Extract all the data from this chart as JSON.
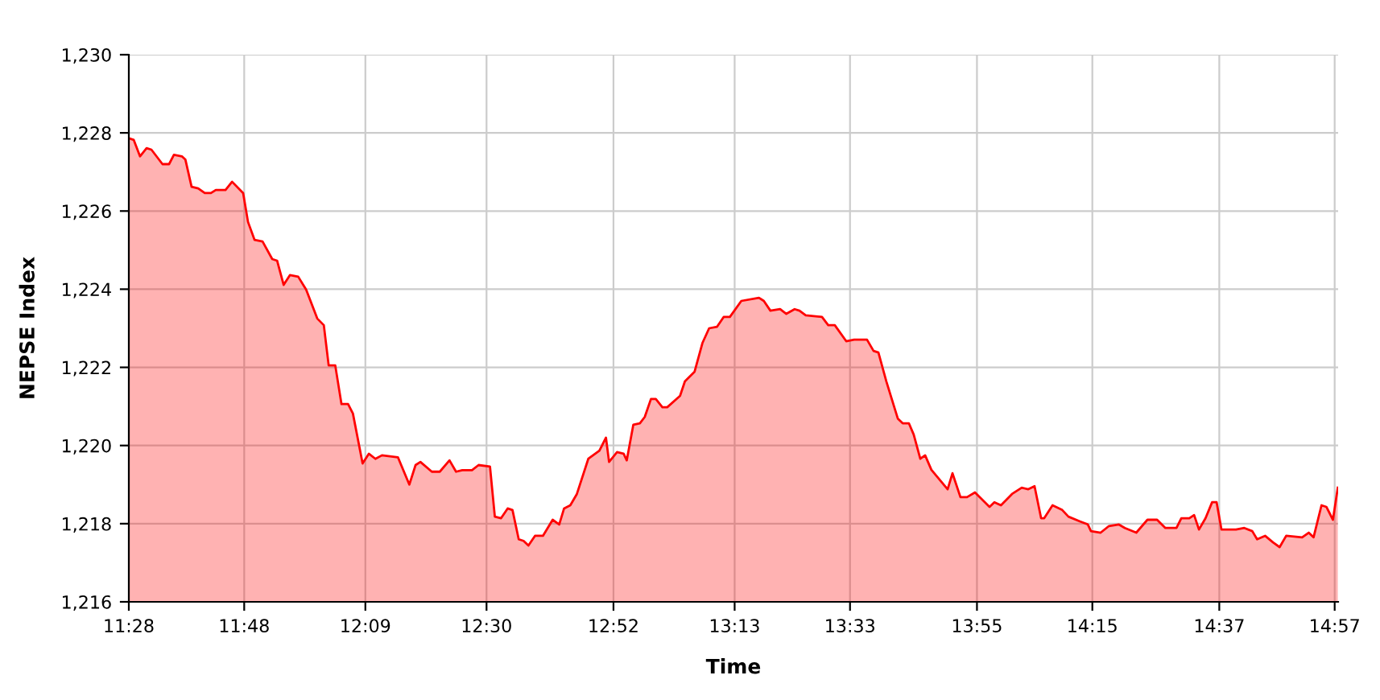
{
  "chart_data": {
    "type": "area",
    "xlabel": "Time",
    "ylabel": "NEPSE Index",
    "xlim": [
      11.4667,
      14.96
    ],
    "ylim": [
      1216,
      1230
    ],
    "xticks": [
      {
        "value": 11.4667,
        "label": "11:28"
      },
      {
        "value": 11.8,
        "label": "11:48"
      },
      {
        "value": 12.15,
        "label": "12:09"
      },
      {
        "value": 12.5,
        "label": "12:30"
      },
      {
        "value": 12.8667,
        "label": "12:52"
      },
      {
        "value": 13.2167,
        "label": "13:13"
      },
      {
        "value": 13.55,
        "label": "13:33"
      },
      {
        "value": 13.9167,
        "label": "13:55"
      },
      {
        "value": 14.25,
        "label": "14:15"
      },
      {
        "value": 14.6167,
        "label": "14:37"
      },
      {
        "value": 14.95,
        "label": "14:57"
      }
    ],
    "yticks": [
      {
        "value": 1216,
        "label": "1,216"
      },
      {
        "value": 1218,
        "label": "1,218"
      },
      {
        "value": 1220,
        "label": "1,220"
      },
      {
        "value": 1222,
        "label": "1,222"
      },
      {
        "value": 1224,
        "label": "1,224"
      },
      {
        "value": 1226,
        "label": "1,226"
      },
      {
        "value": 1228,
        "label": "1,228"
      },
      {
        "value": 1230,
        "label": "1,230"
      }
    ],
    "grid": true,
    "legend": false,
    "series": [
      {
        "color": "#ff0000",
        "x": [
          11.467,
          11.481,
          11.499,
          11.518,
          11.532,
          11.564,
          11.583,
          11.597,
          11.62,
          11.63,
          11.648,
          11.667,
          11.686,
          11.704,
          11.718,
          11.746,
          11.765,
          11.797,
          11.811,
          11.83,
          11.853,
          11.881,
          11.895,
          11.914,
          11.932,
          11.956,
          11.979,
          12.011,
          12.03,
          12.044,
          12.063,
          12.081,
          12.1,
          12.114,
          12.142,
          12.16,
          12.179,
          12.198,
          12.244,
          12.277,
          12.295,
          12.309,
          12.342,
          12.365,
          12.393,
          12.412,
          12.43,
          12.458,
          12.477,
          12.51,
          12.524,
          12.542,
          12.561,
          12.575,
          12.593,
          12.607,
          12.621,
          12.64,
          12.645,
          12.663,
          12.691,
          12.71,
          12.724,
          12.742,
          12.761,
          12.794,
          12.826,
          12.845,
          12.854,
          12.877,
          12.896,
          12.905,
          12.924,
          12.943,
          12.957,
          12.975,
          12.989,
          13.008,
          13.022,
          13.059,
          13.073,
          13.101,
          13.124,
          13.143,
          13.166,
          13.185,
          13.203,
          13.236,
          13.287,
          13.301,
          13.32,
          13.348,
          13.366,
          13.39,
          13.404,
          13.422,
          13.469,
          13.487,
          13.506,
          13.539,
          13.562,
          13.599,
          13.618,
          13.632,
          13.655,
          13.688,
          13.702,
          13.72,
          13.734,
          13.753,
          13.767,
          13.785,
          13.832,
          13.846,
          13.869,
          13.888,
          13.911,
          13.953,
          13.967,
          13.986,
          14.018,
          14.046,
          14.065,
          14.083,
          14.102,
          14.111,
          14.135,
          14.163,
          14.181,
          14.214,
          14.237,
          14.246,
          14.274,
          14.298,
          14.326,
          14.344,
          14.377,
          14.409,
          14.437,
          14.461,
          14.493,
          14.507,
          14.53,
          14.544,
          14.558,
          14.577,
          14.596,
          14.609,
          14.623,
          14.665,
          14.689,
          14.712,
          14.726,
          14.749,
          14.772,
          14.791,
          14.81,
          14.856,
          14.875,
          14.889,
          14.912,
          14.926,
          14.945,
          14.959
        ],
        "values": [
          1227.86,
          1227.82,
          1227.4,
          1227.61,
          1227.57,
          1227.2,
          1227.2,
          1227.44,
          1227.4,
          1227.32,
          1226.62,
          1226.58,
          1226.46,
          1226.46,
          1226.54,
          1226.54,
          1226.75,
          1226.46,
          1225.72,
          1225.26,
          1225.22,
          1224.77,
          1224.73,
          1224.11,
          1224.36,
          1224.32,
          1223.99,
          1223.25,
          1223.08,
          1222.05,
          1222.05,
          1221.06,
          1221.06,
          1220.82,
          1219.54,
          1219.79,
          1219.66,
          1219.75,
          1219.7,
          1219.0,
          1219.5,
          1219.58,
          1219.33,
          1219.33,
          1219.62,
          1219.33,
          1219.37,
          1219.37,
          1219.5,
          1219.46,
          1218.18,
          1218.14,
          1218.39,
          1218.35,
          1217.6,
          1217.56,
          1217.44,
          1217.69,
          1217.69,
          1217.69,
          1218.1,
          1217.98,
          1218.39,
          1218.47,
          1218.76,
          1219.66,
          1219.87,
          1220.2,
          1219.58,
          1219.83,
          1219.79,
          1219.62,
          1220.53,
          1220.57,
          1220.73,
          1221.19,
          1221.19,
          1220.98,
          1220.98,
          1221.27,
          1221.64,
          1221.89,
          1222.63,
          1223.0,
          1223.04,
          1223.29,
          1223.29,
          1223.7,
          1223.78,
          1223.7,
          1223.45,
          1223.49,
          1223.37,
          1223.49,
          1223.45,
          1223.33,
          1223.29,
          1223.08,
          1223.08,
          1222.67,
          1222.71,
          1222.71,
          1222.42,
          1222.38,
          1221.64,
          1220.69,
          1220.57,
          1220.57,
          1220.28,
          1219.66,
          1219.75,
          1219.38,
          1218.88,
          1219.29,
          1218.68,
          1218.68,
          1218.8,
          1218.43,
          1218.55,
          1218.47,
          1218.76,
          1218.92,
          1218.88,
          1218.96,
          1218.14,
          1218.14,
          1218.47,
          1218.35,
          1218.18,
          1218.06,
          1217.98,
          1217.81,
          1217.77,
          1217.94,
          1217.98,
          1217.89,
          1217.77,
          1218.1,
          1218.1,
          1217.89,
          1217.89,
          1218.14,
          1218.14,
          1218.22,
          1217.85,
          1218.14,
          1218.55,
          1218.55,
          1217.85,
          1217.85,
          1217.89,
          1217.81,
          1217.6,
          1217.69,
          1217.52,
          1217.4,
          1217.69,
          1217.65,
          1217.77,
          1217.65,
          1218.47,
          1218.43,
          1218.1,
          1218.92
        ]
      }
    ]
  }
}
